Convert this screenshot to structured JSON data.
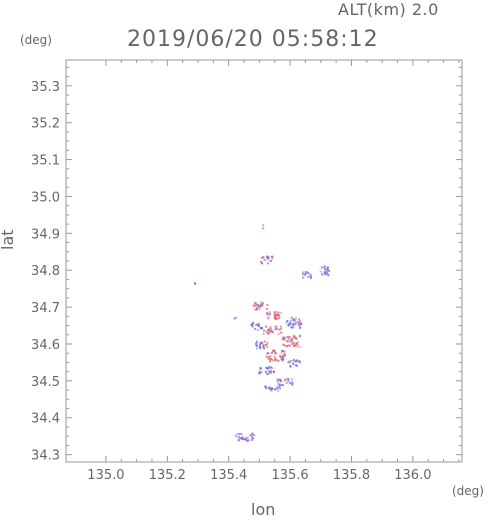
{
  "header": {
    "altitude": "ALT(km) 2.0",
    "timestamp": "2019/06/20 05:58:12"
  },
  "chart_data": {
    "type": "heatmap",
    "xlabel": "lon",
    "ylabel": "lat",
    "x_unit": "(deg)",
    "y_unit": "(deg)",
    "xlim": [
      134.87,
      136.16
    ],
    "ylim": [
      34.28,
      35.37
    ],
    "x_ticks": [
      "135.0",
      "135.2",
      "135.4",
      "135.6",
      "135.8",
      "136.0"
    ],
    "y_ticks": [
      "34.3",
      "34.4",
      "34.5",
      "34.6",
      "34.7",
      "34.8",
      "34.9",
      "35.0",
      "35.1",
      "35.2",
      "35.3"
    ],
    "colors": {
      "positive": "#e8646e",
      "negative": "#6670e6",
      "axis": "#999999"
    },
    "echo_regions": [
      {
        "lon": 135.5,
        "lat": 34.705,
        "dlon": 0.05,
        "dlat": 0.02,
        "sign": "positive"
      },
      {
        "lon": 135.55,
        "lat": 34.68,
        "dlon": 0.06,
        "dlat": 0.02,
        "sign": "positive"
      },
      {
        "lon": 135.61,
        "lat": 34.66,
        "dlon": 0.05,
        "dlat": 0.03,
        "sign": "negative"
      },
      {
        "lon": 135.49,
        "lat": 34.65,
        "dlon": 0.04,
        "dlat": 0.02,
        "sign": "negative"
      },
      {
        "lon": 135.54,
        "lat": 34.64,
        "dlon": 0.06,
        "dlat": 0.02,
        "sign": "positive"
      },
      {
        "lon": 135.6,
        "lat": 34.61,
        "dlon": 0.06,
        "dlat": 0.03,
        "sign": "positive"
      },
      {
        "lon": 135.5,
        "lat": 34.6,
        "dlon": 0.05,
        "dlat": 0.02,
        "sign": "negative"
      },
      {
        "lon": 135.55,
        "lat": 34.57,
        "dlon": 0.06,
        "dlat": 0.03,
        "sign": "positive"
      },
      {
        "lon": 135.61,
        "lat": 34.55,
        "dlon": 0.04,
        "dlat": 0.02,
        "sign": "negative"
      },
      {
        "lon": 135.52,
        "lat": 34.53,
        "dlon": 0.05,
        "dlat": 0.02,
        "sign": "negative"
      },
      {
        "lon": 135.58,
        "lat": 34.5,
        "dlon": 0.05,
        "dlat": 0.02,
        "sign": "negative"
      },
      {
        "lon": 135.54,
        "lat": 34.48,
        "dlon": 0.05,
        "dlat": 0.015,
        "sign": "negative"
      },
      {
        "lon": 135.65,
        "lat": 34.79,
        "dlon": 0.03,
        "dlat": 0.02,
        "sign": "negative"
      },
      {
        "lon": 135.52,
        "lat": 34.83,
        "dlon": 0.04,
        "dlat": 0.02,
        "sign": "negative"
      },
      {
        "lon": 135.71,
        "lat": 34.8,
        "dlon": 0.03,
        "dlat": 0.03,
        "sign": "negative"
      },
      {
        "lon": 135.45,
        "lat": 34.35,
        "dlon": 0.06,
        "dlat": 0.02,
        "sign": "negative"
      },
      {
        "lon": 135.29,
        "lat": 34.77,
        "dlon": 0.01,
        "dlat": 0.01,
        "sign": "negative"
      },
      {
        "lon": 135.42,
        "lat": 34.67,
        "dlon": 0.01,
        "dlat": 0.01,
        "sign": "negative"
      },
      {
        "lon": 135.505,
        "lat": 34.92,
        "dlon": 0.01,
        "dlat": 0.01,
        "sign": "negative"
      }
    ]
  }
}
